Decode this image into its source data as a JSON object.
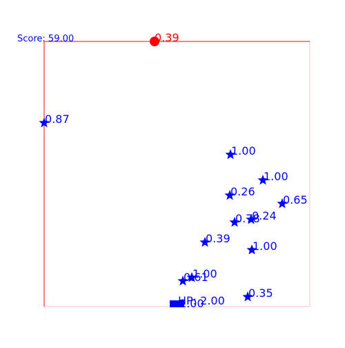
{
  "score": "Score: 59.00",
  "target": {
    "label": "0.39"
  },
  "enemies": [
    {
      "label": "0.87"
    },
    {
      "label": "1.00"
    },
    {
      "label": "1.00"
    },
    {
      "label": "0.26"
    },
    {
      "label": "0.65"
    },
    {
      "label": "0.78"
    },
    {
      "label": "0.24"
    },
    {
      "label": "0.39"
    },
    {
      "label": "1.00"
    },
    {
      "label": "1.00"
    },
    {
      "label": "0.61"
    },
    {
      "label": "0.35"
    }
  ],
  "player": {
    "label": "1.00",
    "hp": "HP: 2.00"
  }
}
